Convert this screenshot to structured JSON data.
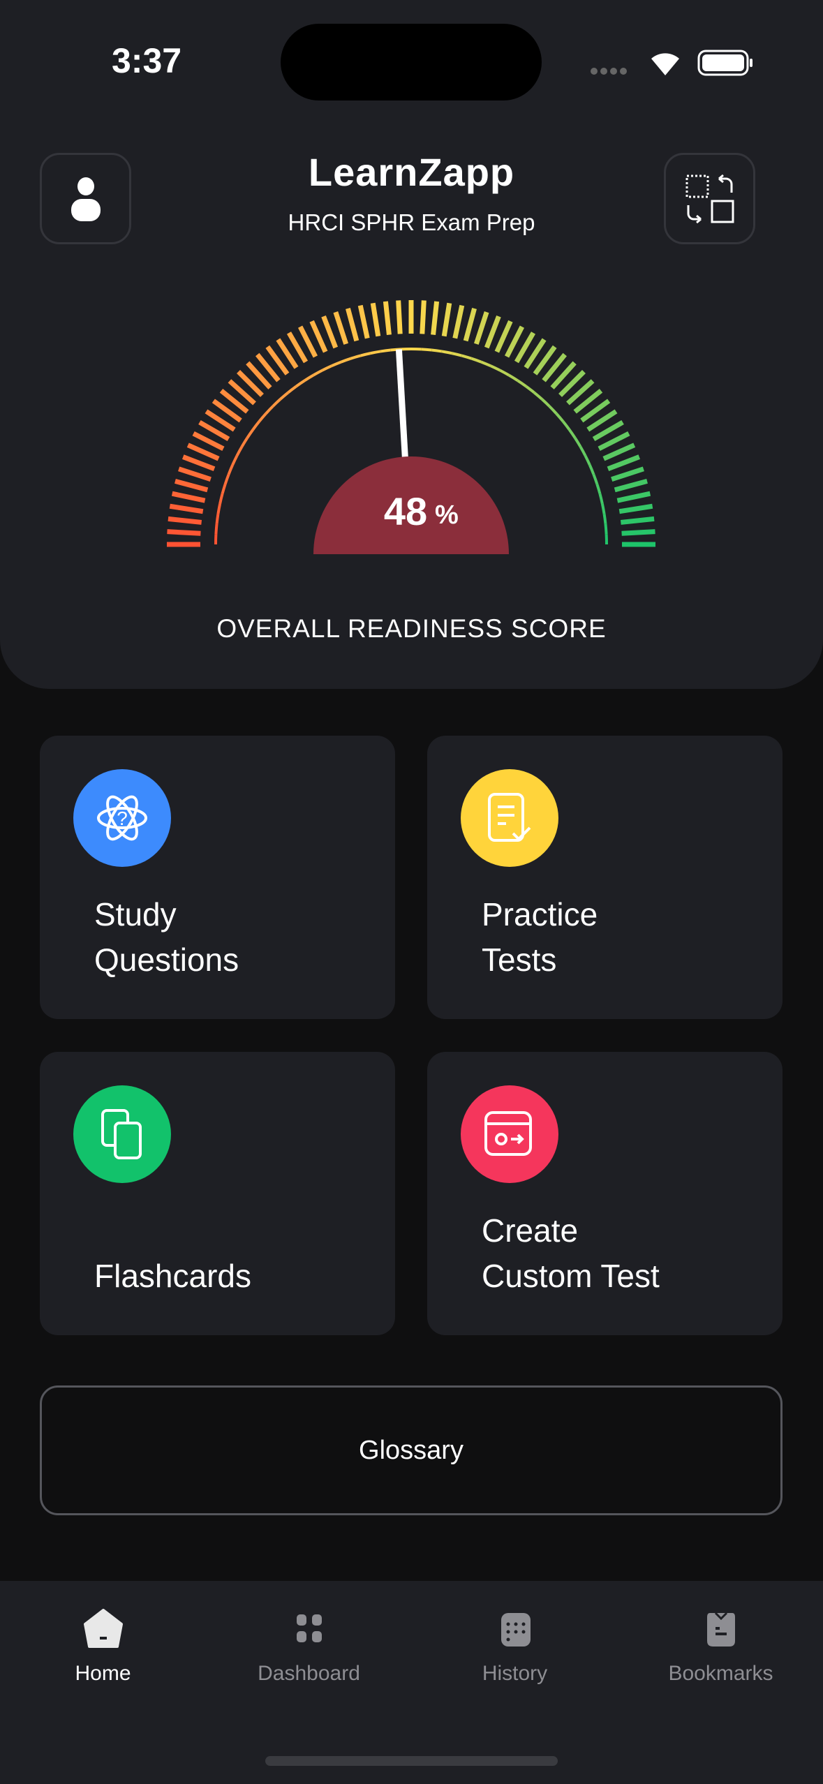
{
  "status_bar": {
    "time": "3:37"
  },
  "header": {
    "logo": "LearnZapp",
    "subtitle": "HRCI SPHR  Exam Prep",
    "profile_icon": "user-icon",
    "switch_icon": "swap-icon"
  },
  "gauge": {
    "value": 48,
    "value_label": "48",
    "unit": "%",
    "caption": "OVERALL READINESS SCORE",
    "colors": {
      "low": "#ff5233",
      "mid": "#ffd84d",
      "high": "#1ec46a",
      "badge": "#8b2e3b"
    }
  },
  "cards": [
    {
      "label_line1": "Study",
      "label_line2": "Questions",
      "icon": "atom-question-icon",
      "color": "#3d8bfd"
    },
    {
      "label_line1": "Practice",
      "label_line2": "Tests",
      "icon": "document-check-icon",
      "color": "#ffd43b"
    },
    {
      "label_line1": "",
      "label_line2": "Flashcards",
      "icon": "cards-icon",
      "color": "#12c26b"
    },
    {
      "label_line1": "Create",
      "label_line2": "Custom Test",
      "icon": "custom-test-icon",
      "color": "#f5365c"
    }
  ],
  "glossary": {
    "label": "Glossary"
  },
  "nav": [
    {
      "label": "Home",
      "icon": "home-icon",
      "active": true
    },
    {
      "label": "Dashboard",
      "icon": "grid-icon"
    },
    {
      "label": "History",
      "icon": "calendar-icon"
    },
    {
      "label": "Bookmarks",
      "icon": "bookmark-icon"
    }
  ]
}
